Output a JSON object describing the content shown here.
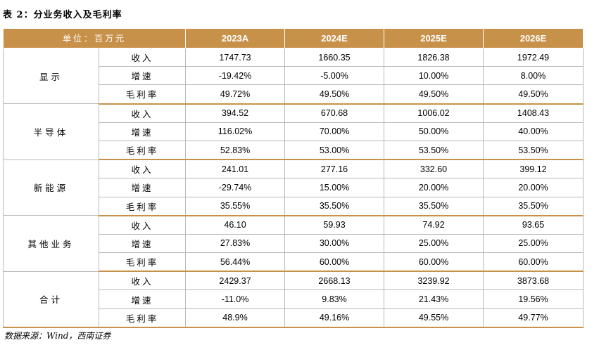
{
  "title": "表 2：分业务收入及毛利率",
  "header": {
    "unit_label": "单位：百万元",
    "years": [
      "2023A",
      "2024E",
      "2025E",
      "2026E"
    ]
  },
  "groups": [
    {
      "name": "显示",
      "rows": [
        {
          "metric": "收入",
          "values": [
            "1747.73",
            "1660.35",
            "1826.38",
            "1972.49"
          ]
        },
        {
          "metric": "增速",
          "values": [
            "-19.42%",
            "-5.00%",
            "10.00%",
            "8.00%"
          ]
        },
        {
          "metric": "毛利率",
          "values": [
            "49.72%",
            "49.50%",
            "49.50%",
            "49.50%"
          ]
        }
      ]
    },
    {
      "name": "半导体",
      "rows": [
        {
          "metric": "收入",
          "values": [
            "394.52",
            "670.68",
            "1006.02",
            "1408.43"
          ]
        },
        {
          "metric": "增速",
          "values": [
            "116.02%",
            "70.00%",
            "50.00%",
            "40.00%"
          ]
        },
        {
          "metric": "毛利率",
          "values": [
            "52.83%",
            "53.00%",
            "53.50%",
            "53.50%"
          ]
        }
      ]
    },
    {
      "name": "新能源",
      "rows": [
        {
          "metric": "收入",
          "values": [
            "241.01",
            "277.16",
            "332.60",
            "399.12"
          ]
        },
        {
          "metric": "增速",
          "values": [
            "-29.74%",
            "15.00%",
            "20.00%",
            "20.00%"
          ]
        },
        {
          "metric": "毛利率",
          "values": [
            "35.55%",
            "35.50%",
            "35.50%",
            "35.50%"
          ]
        }
      ]
    },
    {
      "name": "其他业务",
      "rows": [
        {
          "metric": "收入",
          "values": [
            "46.10",
            "59.93",
            "74.92",
            "93.65"
          ]
        },
        {
          "metric": "增速",
          "values": [
            "27.83%",
            "30.00%",
            "25.00%",
            "25.00%"
          ]
        },
        {
          "metric": "毛利率",
          "values": [
            "56.44%",
            "60.00%",
            "60.00%",
            "60.00%"
          ]
        }
      ]
    },
    {
      "name": "合计",
      "rows": [
        {
          "metric": "收入",
          "values": [
            "2429.37",
            "2668.13",
            "3239.92",
            "3873.68"
          ]
        },
        {
          "metric": "增速",
          "values": [
            "-11.0%",
            "9.83%",
            "21.43%",
            "19.56%"
          ]
        },
        {
          "metric": "毛利率",
          "values": [
            "48.9%",
            "49.16%",
            "49.55%",
            "49.77%"
          ]
        }
      ]
    }
  ],
  "source": "数据来源：Wind，西南证券",
  "colors": {
    "header_bg": "#c8914a",
    "header_text": "#ffffff",
    "border": "#b9b9b9"
  }
}
